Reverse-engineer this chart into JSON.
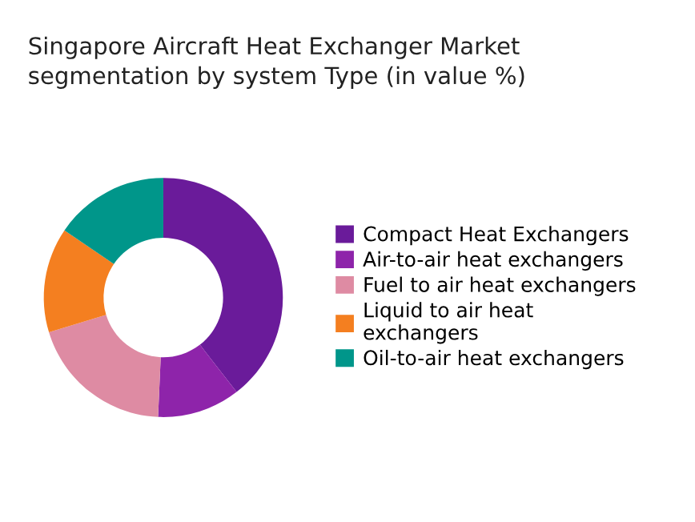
{
  "chart_data": {
    "type": "donut",
    "title": "Singapore Aircraft Heat Exchanger Market\nsegmentation by system Type (in value %)",
    "categories": [
      "Compact Heat Exchangers",
      "Air-to-air heat exchangers",
      "Fuel to air heat exchangers",
      "Liquid to air heat\nexchangers",
      "Oil-to-air heat exchangers"
    ],
    "values": [
      39.5,
      11.2,
      19.6,
      14.2,
      15.5
    ],
    "colors": [
      "#6a1b9a",
      "#8e24aa",
      "#de8ba3",
      "#f47f20",
      "#00968a"
    ],
    "legend": "right"
  }
}
